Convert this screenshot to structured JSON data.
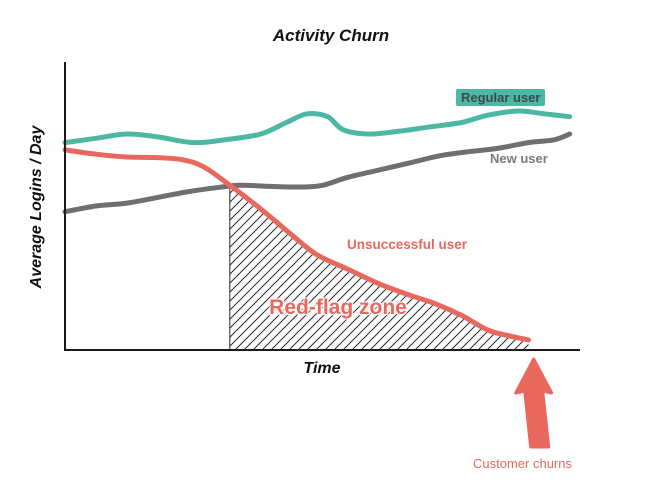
{
  "chart_data": {
    "type": "line",
    "title": "Activity Churn",
    "xlabel": "Time",
    "ylabel": "Average Logins / Day",
    "x_range": [
      0,
      100
    ],
    "y_range": [
      0,
      10
    ],
    "grid": false,
    "axis_ticks": "none",
    "legend_position": "inline-labels",
    "colors": {
      "axis": "#1a1a1a",
      "hatch": "#2a2a2a",
      "arrow": "#e8685e"
    },
    "series": [
      {
        "id": "regular",
        "name": "Regular user",
        "color": "#4cb8a4",
        "points": [
          [
            0,
            7.2
          ],
          [
            6,
            7.35
          ],
          [
            12,
            7.5
          ],
          [
            18,
            7.4
          ],
          [
            25,
            7.2
          ],
          [
            31,
            7.3
          ],
          [
            38,
            7.5
          ],
          [
            43,
            7.9
          ],
          [
            47,
            8.2
          ],
          [
            51,
            8.1
          ],
          [
            54,
            7.65
          ],
          [
            59,
            7.5
          ],
          [
            65,
            7.6
          ],
          [
            71,
            7.75
          ],
          [
            77,
            7.9
          ],
          [
            82,
            8.15
          ],
          [
            88,
            8.3
          ],
          [
            93,
            8.2
          ],
          [
            98,
            8.1
          ]
        ]
      },
      {
        "id": "new",
        "name": "New user",
        "color": "#6f6f6f",
        "points": [
          [
            0,
            4.8
          ],
          [
            6,
            5.0
          ],
          [
            12,
            5.1
          ],
          [
            18,
            5.3
          ],
          [
            24,
            5.5
          ],
          [
            30,
            5.65
          ],
          [
            34,
            5.72
          ],
          [
            40,
            5.68
          ],
          [
            46,
            5.66
          ],
          [
            50,
            5.72
          ],
          [
            55,
            6.0
          ],
          [
            61,
            6.25
          ],
          [
            67,
            6.5
          ],
          [
            73,
            6.75
          ],
          [
            79,
            6.9
          ],
          [
            84,
            7.0
          ],
          [
            90,
            7.2
          ],
          [
            95,
            7.3
          ],
          [
            98,
            7.5
          ]
        ]
      },
      {
        "id": "unsuccessful",
        "name": "Unsuccessful user",
        "color": "#e8685e",
        "points": [
          [
            0,
            6.95
          ],
          [
            6,
            6.8
          ],
          [
            12,
            6.7
          ],
          [
            18,
            6.68
          ],
          [
            23,
            6.6
          ],
          [
            27,
            6.35
          ],
          [
            32,
            5.72
          ],
          [
            38,
            4.9
          ],
          [
            44,
            4.0
          ],
          [
            49,
            3.3
          ],
          [
            55,
            2.8
          ],
          [
            61,
            2.3
          ],
          [
            67,
            1.9
          ],
          [
            72,
            1.6
          ],
          [
            77,
            1.2
          ],
          [
            82,
            0.7
          ],
          [
            86,
            0.5
          ],
          [
            90,
            0.35
          ]
        ]
      }
    ],
    "red_flag_zone": {
      "label": "Red-flag zone",
      "x_start": 32,
      "x_end": 90
    },
    "annotation_arrow": {
      "label": "Customer churns",
      "x": 91,
      "direction": "up"
    }
  }
}
